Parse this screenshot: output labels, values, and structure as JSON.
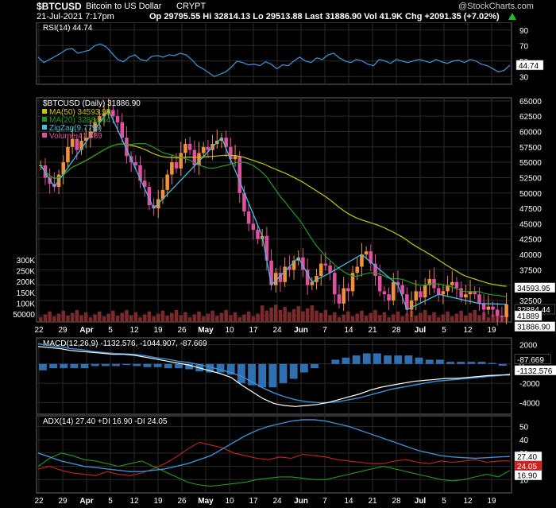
{
  "header": {
    "symbol": "$BTCUSD",
    "name": "Bitcoin to US Dollar",
    "exchange": "CRYPT",
    "date": "21-Jul-2021 7:17pm",
    "quote": "Op 29795.55  Hi 32814.13  Lo 29513.88  Last 31886.90  Vol 41.9K  Chg +2091.35 (+7.02%)",
    "copyright": "@StockCharts.com"
  },
  "colors": {
    "background": "#000000",
    "panel_border": "#666666",
    "grid": "#2a2a2a",
    "up_candle": "#f0903a",
    "down_candle": "#e050a0",
    "ma50": "#c8c800",
    "ma20": "#1e9e1e",
    "zigzag": "#40c0e0",
    "volume": "#7a2a2a",
    "rsi": "#3a8fd8",
    "macd": "#ffffff",
    "macd_signal": "#3a8fd8",
    "histogram": "#3070b0",
    "adx": "#3a8fd8",
    "plus_di": "#1ea01e",
    "minus_di": "#d02020",
    "price_tag": "#ffffff",
    "last_tag": "#ffffff"
  },
  "chart_data": [
    {
      "type": "line",
      "panel": "rsi",
      "legend": "RSI(14) 44.74",
      "ylim": [
        20,
        100
      ],
      "yticks": [
        90,
        70,
        50,
        30
      ],
      "last_label": "44.74",
      "series": [
        {
          "name": "RSI(14)",
          "values": [
            55,
            48,
            52,
            56,
            60,
            65,
            66,
            60,
            62,
            64,
            70,
            72,
            68,
            60,
            52,
            49,
            55,
            58,
            52,
            50,
            56,
            57,
            55,
            58,
            57,
            60,
            58,
            52,
            44,
            40,
            35,
            30,
            33,
            36,
            42,
            50,
            48,
            45,
            46,
            44,
            49,
            46,
            40,
            45,
            44,
            50,
            55,
            50,
            48,
            54,
            52,
            58,
            60,
            54,
            50,
            48,
            52,
            50,
            46,
            44,
            52,
            50,
            47,
            52,
            50,
            48,
            50,
            52,
            50,
            48,
            52,
            49,
            47,
            50,
            51,
            48,
            52,
            50,
            46,
            44,
            40,
            36,
            38,
            44.74
          ]
        }
      ]
    },
    {
      "type": "candlestick",
      "panel": "price",
      "title": "$BTCUSD (Daily) 31886.90",
      "legend": [
        "MA(50) 34593.95",
        "MA(20) 32884.44",
        "ZigZag(9.77%)",
        "Volume 41,889"
      ],
      "ylim": [
        29000,
        65500
      ],
      "yticks": [
        65000,
        62500,
        60000,
        57500,
        55000,
        52500,
        50000,
        47500,
        45000,
        42500,
        40000,
        37500,
        35000,
        32500,
        30000
      ],
      "volume_ticks": [
        "300K",
        "250K",
        "200K",
        "150K",
        "100K",
        "50000"
      ],
      "volume_ylim": [
        0,
        320000
      ],
      "right_labels": [
        "34593.95",
        "32884.44",
        "31886.90",
        "41889"
      ],
      "x_labels": [
        "22",
        "29",
        "Apr",
        "5",
        "12",
        "19",
        "26",
        "May",
        "10",
        "17",
        "24",
        "Jun",
        "7",
        "14",
        "21",
        "28",
        "Jul",
        "5",
        "12",
        "19"
      ],
      "close": [
        54500,
        52500,
        51500,
        51000,
        53000,
        55000,
        57500,
        58800,
        57000,
        58500,
        59000,
        60000,
        61500,
        62500,
        63000,
        63500,
        62500,
        61500,
        59000,
        56000,
        55000,
        54500,
        52000,
        51000,
        48000,
        47500,
        49000,
        50500,
        53000,
        55000,
        54000,
        56500,
        58000,
        57000,
        54500,
        56500,
        57500,
        57000,
        58000,
        58500,
        59000,
        57500,
        55500,
        56000,
        50000,
        47000,
        45000,
        44000,
        42500,
        43000,
        39000,
        35000,
        37000,
        35500,
        38000,
        37500,
        39000,
        39500,
        37500,
        35000,
        35500,
        36500,
        38500,
        38200,
        37000,
        33500,
        32000,
        34500,
        34000,
        37000,
        38000,
        40000,
        40500,
        38500,
        36500,
        34000,
        33500,
        32500,
        35500,
        35000,
        33500,
        31000,
        32500,
        34000,
        33000,
        35000,
        36000,
        34500,
        33500,
        34000,
        35000,
        35500,
        34500,
        33000,
        33500,
        34000,
        33500,
        32000,
        31000,
        31500,
        31000,
        30000,
        29800,
        31886
      ]
    },
    {
      "type": "line",
      "panel": "macd",
      "legend": "MACD(12,26,9) -1132.576, -1044.907, -87.669",
      "ylim": [
        -5200,
        2700
      ],
      "yticks": [
        2000,
        0,
        -2000,
        -4000
      ],
      "right_labels": [
        "-87.669",
        "-1132.576"
      ],
      "series": [
        {
          "name": "MACD(12,26,9)",
          "values": [
            1800,
            1700,
            1600,
            1400,
            1300,
            1200,
            1100,
            1000,
            1000,
            900,
            700,
            500,
            300,
            100,
            -100,
            -400,
            -700,
            -1000,
            -1400,
            -2200,
            -2900,
            -3600,
            -4100,
            -4300,
            -4400,
            -4300,
            -4200,
            -4000,
            -3700,
            -3400,
            -3100,
            -2700,
            -2400,
            -2200,
            -2000,
            -1800,
            -1700,
            -1600,
            -1500,
            -1500,
            -1400,
            -1300,
            -1200,
            -1150,
            -1132.576
          ]
        },
        {
          "name": "Signal",
          "values": [
            2100,
            1900,
            1800,
            1600,
            1500,
            1300,
            1200,
            1100,
            1050,
            1000,
            850,
            650,
            500,
            300,
            150,
            -50,
            -300,
            -600,
            -900,
            -1300,
            -1900,
            -2500,
            -3000,
            -3400,
            -3700,
            -3900,
            -4000,
            -4000,
            -3900,
            -3700,
            -3500,
            -3200,
            -2900,
            -2600,
            -2400,
            -2200,
            -2000,
            -1800,
            -1700,
            -1600,
            -1500,
            -1400,
            -1300,
            -1200,
            -1044.907
          ]
        }
      ]
    },
    {
      "type": "line",
      "panel": "adx",
      "legend": "ADX(14) 27.40  +DI 16.90  -DI 24.05",
      "ylim": [
        0,
        58
      ],
      "yticks": [
        50,
        40,
        30,
        20,
        10
      ],
      "right_labels": [
        "27.40",
        "24.05",
        "16.90"
      ],
      "series": [
        {
          "name": "ADX(14)",
          "values": [
            30,
            27,
            24,
            22,
            20,
            19,
            18,
            17,
            16,
            16,
            17,
            18,
            20,
            22,
            25,
            28,
            33,
            38,
            43,
            47,
            50,
            52,
            54,
            55,
            55,
            54,
            52,
            50,
            47,
            44,
            41,
            38,
            35,
            32,
            30,
            28,
            27,
            26.5,
            26,
            26.5,
            27,
            27.4
          ]
        },
        {
          "name": "+DI",
          "values": [
            20,
            26,
            30,
            28,
            25,
            24,
            22,
            20,
            22,
            24,
            20,
            16,
            12,
            8,
            6,
            5,
            6,
            7,
            8,
            10,
            11,
            12,
            12,
            11,
            10,
            10,
            12,
            14,
            16,
            18,
            20,
            18,
            16,
            14,
            12,
            10,
            9,
            10,
            12,
            14,
            12,
            16.9
          ]
        },
        {
          "name": "-DI",
          "values": [
            18,
            20,
            17,
            15,
            14,
            13,
            16,
            14,
            13,
            15,
            18,
            22,
            27,
            33,
            38,
            36,
            34,
            30,
            28,
            26,
            25,
            27,
            26,
            29,
            28,
            27,
            25,
            24,
            23,
            22,
            22,
            24,
            25,
            23,
            22,
            24,
            23,
            24,
            25,
            23,
            24,
            24.05
          ]
        }
      ]
    }
  ]
}
